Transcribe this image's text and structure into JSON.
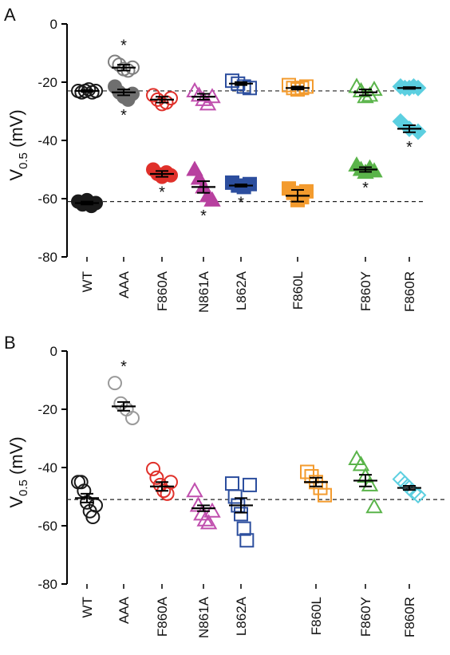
{
  "chart_data": [
    {
      "type": "scatter",
      "panel_label": "A",
      "ylabel_main": "V",
      "ylabel_sub": "0.5",
      "ylabel_unit": " (mV)",
      "ylim": [
        -80,
        0
      ],
      "yticks": [
        "0",
        "-20",
        "-40",
        "-60",
        "-80"
      ],
      "reference_lines": [
        -23,
        -61
      ],
      "categories": [
        "WT",
        "AAA",
        "F860A",
        "N861A",
        "L862A",
        "F860L",
        "F860Y",
        "F860R"
      ],
      "groups": [
        {
          "category": "WT",
          "marker": "circle",
          "color": "#1a1a1a",
          "filled": false,
          "points": [
            -23,
            -23.5,
            -23,
            -22.5,
            -23.5,
            -23
          ],
          "mean": -23,
          "sem": 0.3,
          "star": false
        },
        {
          "category": "WT",
          "marker": "circle",
          "color": "#1a1a1a",
          "filled": true,
          "points": [
            -61,
            -62,
            -60.5,
            -62.5,
            -61.5
          ],
          "mean": -61.5,
          "sem": 0.5,
          "star": false
        },
        {
          "category": "AAA",
          "marker": "circle",
          "color": "#7f7f7f",
          "filled": false,
          "points": [
            -13,
            -14,
            -15.5,
            -16,
            -15
          ],
          "mean": -15,
          "sem": 1,
          "star": true
        },
        {
          "category": "AAA",
          "marker": "circle",
          "color": "#6f6f6f",
          "filled": true,
          "points": [
            -21.5,
            -23.5,
            -25,
            -26,
            -24
          ],
          "mean": -23.5,
          "sem": 1,
          "star": true
        },
        {
          "category": "F860A",
          "marker": "circle",
          "color": "#e0302a",
          "filled": false,
          "points": [
            -24.5,
            -26,
            -27.5,
            -27,
            -25.5
          ],
          "mean": -26,
          "sem": 1,
          "star": false
        },
        {
          "category": "F860A",
          "marker": "circle",
          "color": "#e0302a",
          "filled": true,
          "points": [
            -50,
            -51.5,
            -52.5,
            -51,
            -52
          ],
          "mean": -51.5,
          "sem": 1,
          "star": true
        },
        {
          "category": "N861A",
          "marker": "triangle",
          "color": "#c04fae",
          "filled": false,
          "points": [
            -23,
            -24.5,
            -26,
            -27.5,
            -25
          ],
          "mean": -25,
          "sem": 1,
          "star": false
        },
        {
          "category": "N861A",
          "marker": "triangle",
          "color": "#b8409f",
          "filled": true,
          "points": [
            -50,
            -53,
            -56,
            -59,
            -60.5
          ],
          "mean": -56,
          "sem": 2,
          "star": true
        },
        {
          "category": "L862A",
          "marker": "square",
          "color": "#2c4e9e",
          "filled": false,
          "points": [
            -19.5,
            -20.5,
            -21.5,
            -22
          ],
          "mean": -20.5,
          "sem": 0.5,
          "star": false
        },
        {
          "category": "L862A",
          "marker": "square",
          "color": "#2c4e9e",
          "filled": true,
          "points": [
            -54.5,
            -55.5,
            -56,
            -55
          ],
          "mean": -55.5,
          "sem": 0.4,
          "star": true
        },
        {
          "category": "F860L",
          "marker": "square",
          "color": "#f39b2e",
          "filled": false,
          "points": [
            -21,
            -22,
            -22.5,
            -22,
            -21.5
          ],
          "mean": -22,
          "sem": 0.5,
          "star": false
        },
        {
          "category": "F860L",
          "marker": "square",
          "color": "#f39b2e",
          "filled": true,
          "points": [
            -56.5,
            -58,
            -60.5,
            -59.5,
            -57.5
          ],
          "mean": -59,
          "sem": 2,
          "star": false
        },
        {
          "category": "F860Y",
          "marker": "triangle",
          "color": "#5ab44a",
          "filled": false,
          "points": [
            -21.5,
            -23,
            -25,
            -24.5,
            -22.5
          ],
          "mean": -23.5,
          "sem": 1,
          "star": false
        },
        {
          "category": "F860Y",
          "marker": "triangle",
          "color": "#5ab44a",
          "filled": true,
          "points": [
            -48.5,
            -50,
            -51,
            -49.5,
            -50.5
          ],
          "mean": -50,
          "sem": 0.8,
          "star": true
        },
        {
          "category": "F860R",
          "marker": "diamond",
          "color": "#5ccfe0",
          "filled": true,
          "points": [
            -21.5,
            -22,
            -22,
            -21.5,
            -22
          ],
          "mean": -22,
          "sem": 0.3,
          "star": false
        },
        {
          "category": "F860R",
          "marker": "diamond",
          "color": "#5ccfe0",
          "filled": true,
          "points": [
            -33.5,
            -36,
            -37
          ],
          "mean": -36,
          "sem": 1.2,
          "star": true
        }
      ]
    },
    {
      "type": "scatter",
      "panel_label": "B",
      "ylabel_main": "V",
      "ylabel_sub": "0.5",
      "ylabel_unit": " (mV)",
      "ylim": [
        -80,
        0
      ],
      "yticks": [
        "0",
        "-20",
        "-40",
        "-60",
        "-80"
      ],
      "reference_lines": [
        -51
      ],
      "categories": [
        "WT",
        "AAA",
        "F860A",
        "N861A",
        "L862A",
        "F860L",
        "F860Y",
        "F860R"
      ],
      "groups": [
        {
          "category": "WT",
          "marker": "circle",
          "color": "#1a1a1a",
          "filled": false,
          "points": [
            -45,
            -45,
            -48,
            -52,
            -55,
            -57,
            -53
          ],
          "mean": -50.5,
          "sem": 1.5,
          "star": false
        },
        {
          "category": "AAA",
          "marker": "circle",
          "color": "#9a9a9a",
          "filled": false,
          "points": [
            -11,
            -18,
            -20,
            -23
          ],
          "mean": -19,
          "sem": 1.5,
          "star": true
        },
        {
          "category": "F860A",
          "marker": "circle",
          "color": "#e0302a",
          "filled": false,
          "points": [
            -40.5,
            -43.5,
            -46,
            -48,
            -49,
            -45
          ],
          "mean": -46.5,
          "sem": 1.5,
          "star": false
        },
        {
          "category": "N861A",
          "marker": "triangle",
          "color": "#c04fae",
          "filled": false,
          "points": [
            -48,
            -53,
            -56,
            -58,
            -59,
            -55
          ],
          "mean": -54,
          "sem": 1,
          "star": false
        },
        {
          "category": "L862A",
          "marker": "square",
          "color": "#2c4e9e",
          "filled": false,
          "points": [
            -45.5,
            -50,
            -53,
            -56,
            -61,
            -65,
            -46
          ],
          "mean": -53,
          "sem": 2.5,
          "star": false
        },
        {
          "category": "F860L",
          "marker": "square",
          "color": "#f39b2e",
          "filled": false,
          "points": [
            -41.5,
            -43,
            -45,
            -47,
            -49.5
          ],
          "mean": -45,
          "sem": 1.5,
          "star": false
        },
        {
          "category": "F860Y",
          "marker": "triangle",
          "color": "#5ab44a",
          "filled": false,
          "points": [
            -37,
            -39,
            -43,
            -46,
            -53.5
          ],
          "mean": -44.5,
          "sem": 2,
          "star": false
        },
        {
          "category": "F860R",
          "marker": "diamond",
          "color": "#5ccfe0",
          "filled": false,
          "points": [
            -44,
            -45.5,
            -47,
            -48.5,
            -49.5
          ],
          "mean": -47,
          "sem": 0.7,
          "star": false
        }
      ]
    }
  ]
}
